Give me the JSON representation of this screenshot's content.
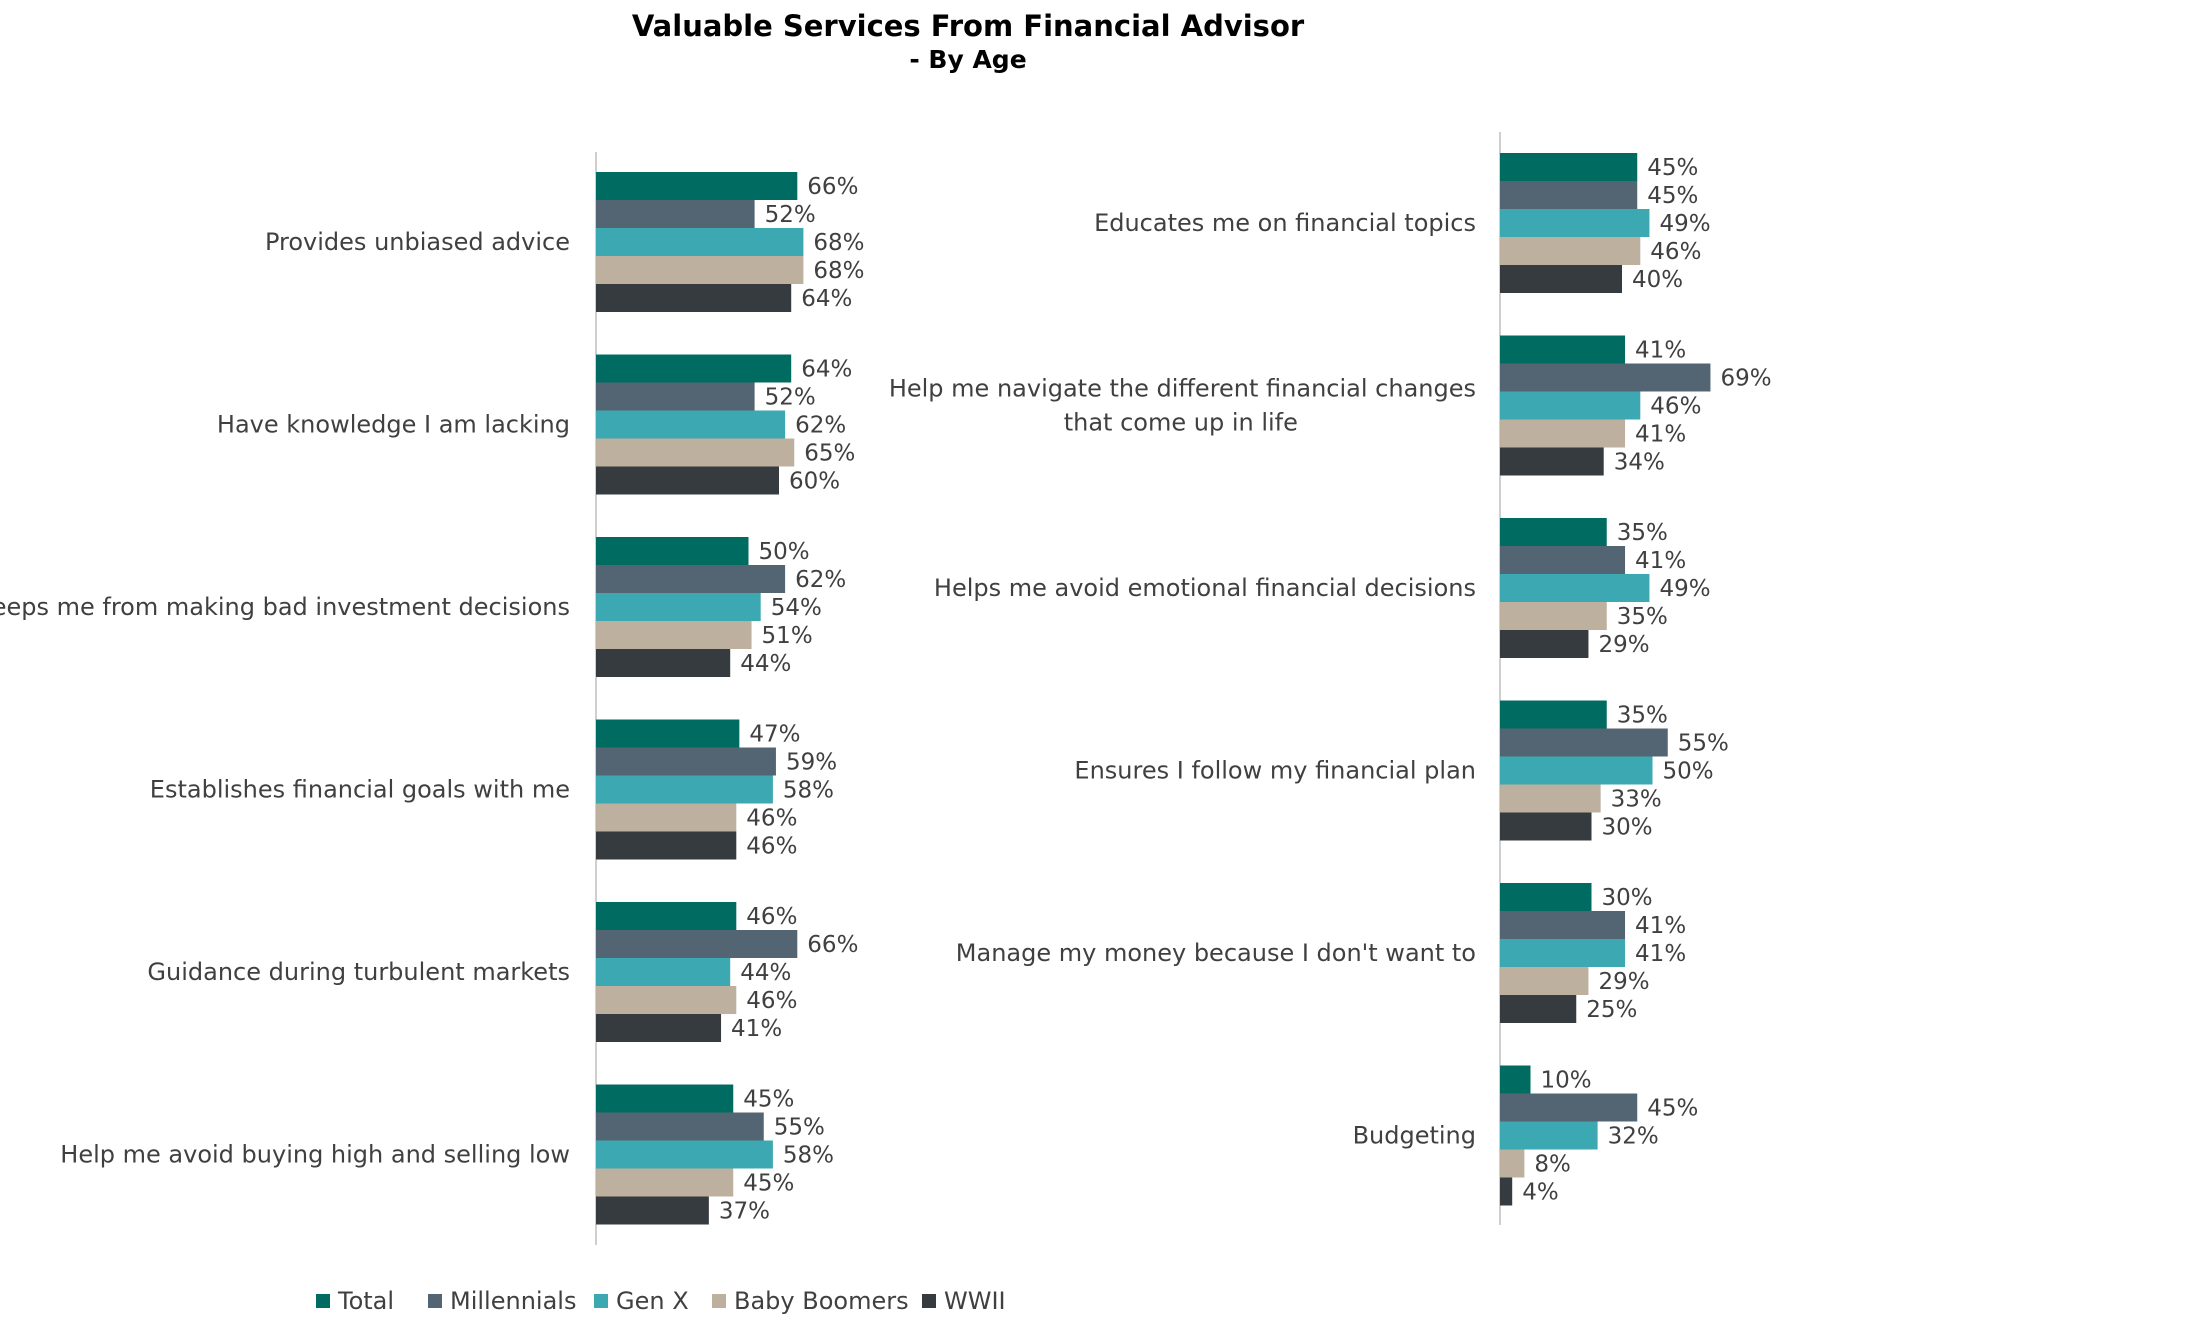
{
  "chart_data": {
    "type": "bar",
    "orientation": "horizontal",
    "title": "Valuable Services From Financial Advisor",
    "subtitle": "- By Age",
    "unit": "%",
    "xlim": [
      0,
      100
    ],
    "grid": false,
    "legend_position": "bottom",
    "colors": {
      "Total": "#006b61",
      "Millennials": "#536573",
      "Gen X": "#3ca8b2",
      "Baby Boomers": "#bdb09e",
      "WWII": "#363b3f"
    },
    "legend": [
      "Total",
      "Millennials",
      "Gen X",
      "Baby Boomers",
      "WWII"
    ],
    "panels": [
      {
        "name": "left",
        "categories": [
          "Provides unbiased advice",
          "Have knowledge I am lacking",
          "Keeps me from making bad investment decisions",
          "Establishes financial goals with me",
          "Guidance during turbulent markets",
          "Help me avoid buying high and selling low"
        ],
        "series": [
          {
            "name": "Total",
            "values": [
              66,
              64,
              50,
              47,
              46,
              45
            ]
          },
          {
            "name": "Millennials",
            "values": [
              52,
              52,
              62,
              59,
              66,
              55
            ]
          },
          {
            "name": "Gen X",
            "values": [
              68,
              62,
              54,
              58,
              44,
              58
            ]
          },
          {
            "name": "Baby Boomers",
            "values": [
              68,
              65,
              51,
              46,
              46,
              45
            ]
          },
          {
            "name": "WWII",
            "values": [
              64,
              60,
              44,
              46,
              41,
              37
            ]
          }
        ]
      },
      {
        "name": "right",
        "categories": [
          "Educates me on financial topics",
          "Help me navigate the different financial changes that come up in life",
          "Helps me avoid emotional financial decisions",
          "Ensures I follow my financial plan",
          "Manage my money because I don't want to",
          "Budgeting"
        ],
        "series": [
          {
            "name": "Total",
            "values": [
              45,
              41,
              35,
              35,
              30,
              10
            ]
          },
          {
            "name": "Millennials",
            "values": [
              45,
              69,
              41,
              55,
              41,
              45
            ]
          },
          {
            "name": "Gen X",
            "values": [
              49,
              46,
              49,
              50,
              41,
              32
            ]
          },
          {
            "name": "Baby Boomers",
            "values": [
              46,
              41,
              35,
              33,
              29,
              8
            ]
          },
          {
            "name": "WWII",
            "values": [
              40,
              34,
              29,
              30,
              25,
              4
            ]
          }
        ]
      }
    ]
  }
}
